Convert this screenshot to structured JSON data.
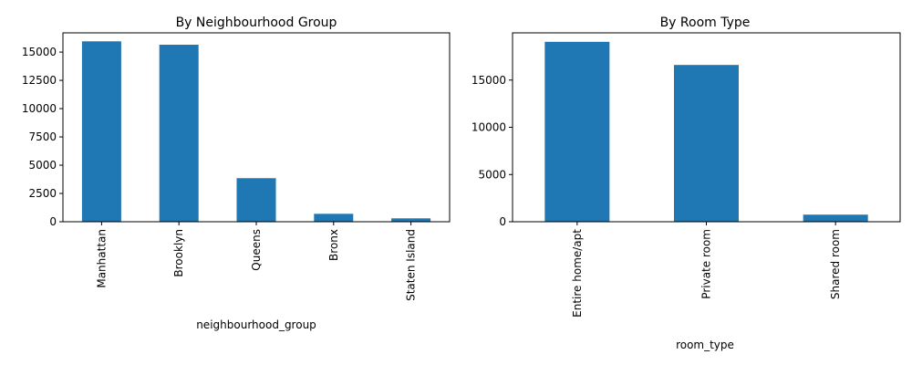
{
  "chart_data": [
    {
      "type": "bar",
      "title": "By Neighbourhood Group",
      "xlabel": "neighbourhood_group",
      "ylabel": "",
      "categories": [
        "Manhattan",
        "Brooklyn",
        "Queens",
        "Bronx",
        "Staten Island"
      ],
      "values": [
        15950,
        15650,
        3850,
        700,
        300
      ],
      "ylim": [
        0,
        16700
      ],
      "yticks": [
        0,
        2500,
        5000,
        7500,
        10000,
        12500,
        15000
      ],
      "grid": false,
      "color": "#1f77b4"
    },
    {
      "type": "bar",
      "title": "By Room Type",
      "xlabel": "room_type",
      "ylabel": "",
      "categories": [
        "Entire home/apt",
        "Private room",
        "Shared room"
      ],
      "values": [
        19050,
        16600,
        750
      ],
      "ylim": [
        0,
        20000
      ],
      "yticks": [
        0,
        5000,
        10000,
        15000
      ],
      "grid": false,
      "color": "#1f77b4"
    }
  ]
}
